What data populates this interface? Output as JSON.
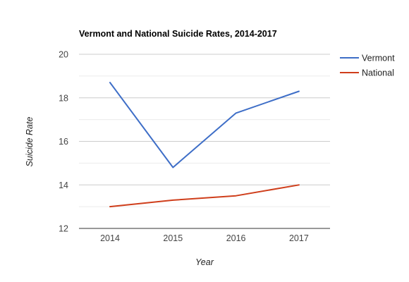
{
  "chart_data": {
    "type": "line",
    "title": "Vermont and National Suicide Rates, 2014-2017",
    "xlabel": "Year",
    "ylabel": "Suicide Rate",
    "categories": [
      "2014",
      "2015",
      "2016",
      "2017"
    ],
    "ylim": [
      12,
      20
    ],
    "yticks": [
      "12",
      "14",
      "16",
      "18",
      "20"
    ],
    "grid": true,
    "legend_position": "right",
    "series": [
      {
        "name": "Vermont",
        "color": "#3e6ec7",
        "values": [
          18.7,
          14.8,
          17.3,
          18.3
        ]
      },
      {
        "name": "National",
        "color": "#cf3e1b",
        "values": [
          13.0,
          13.3,
          13.5,
          14.0
        ]
      }
    ]
  }
}
